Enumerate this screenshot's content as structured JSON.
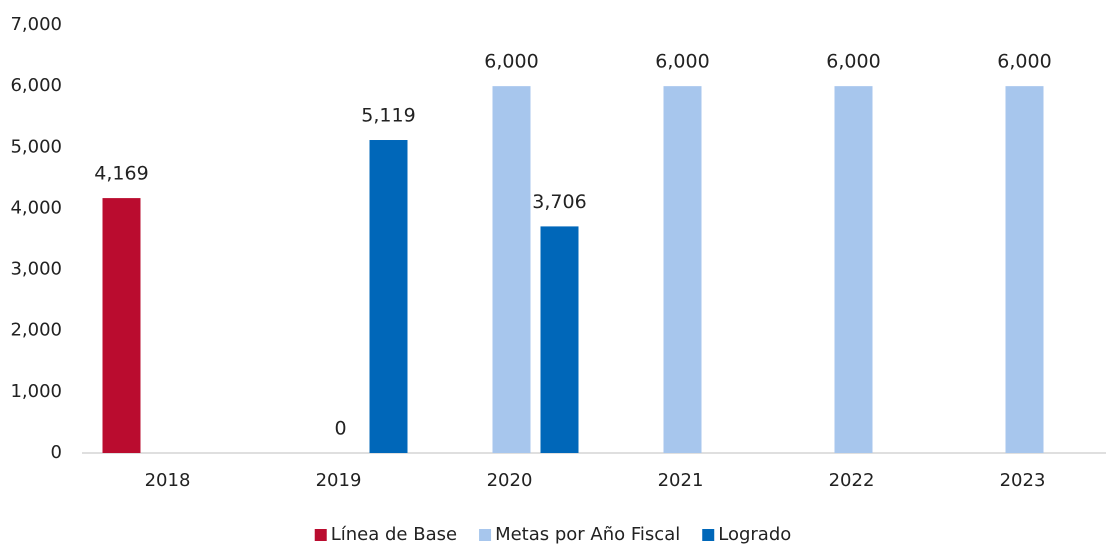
{
  "chart_data": {
    "type": "bar",
    "categories": [
      "2018",
      "2019",
      "2020",
      "2021",
      "2022",
      "2023"
    ],
    "series": [
      {
        "name": "Línea de Base",
        "color": "#ba0c2f",
        "values": [
          4169,
          null,
          null,
          null,
          null,
          null
        ]
      },
      {
        "name": "Metas por Año Fiscal",
        "color": "#a7c6ed",
        "values": [
          null,
          0,
          6000,
          6000,
          6000,
          6000
        ]
      },
      {
        "name": "Logrado",
        "color": "#0067b9",
        "values": [
          null,
          5119,
          3706,
          null,
          null,
          null
        ]
      }
    ],
    "value_labels": [
      [
        "4,169",
        null,
        null,
        null,
        null,
        null
      ],
      [
        null,
        "0",
        "6,000",
        "6,000",
        "6,000",
        "6,000"
      ],
      [
        null,
        "5,119",
        "3,706",
        null,
        null,
        null
      ]
    ],
    "ylim": [
      0,
      7000
    ],
    "yticks": [
      0,
      {
        "value": 1000,
        "label": "1,000"
      },
      {
        "value": 2000,
        "label": "2,000"
      },
      {
        "value": 3000,
        "label": "3,000"
      },
      {
        "value": 4000,
        "label": "4,000"
      },
      {
        "value": 5000,
        "label": "5,000"
      },
      {
        "value": 6000,
        "label": "6,000"
      },
      {
        "value": 7000,
        "label": "7,000"
      }
    ],
    "grid": false,
    "legend": "bottom"
  }
}
